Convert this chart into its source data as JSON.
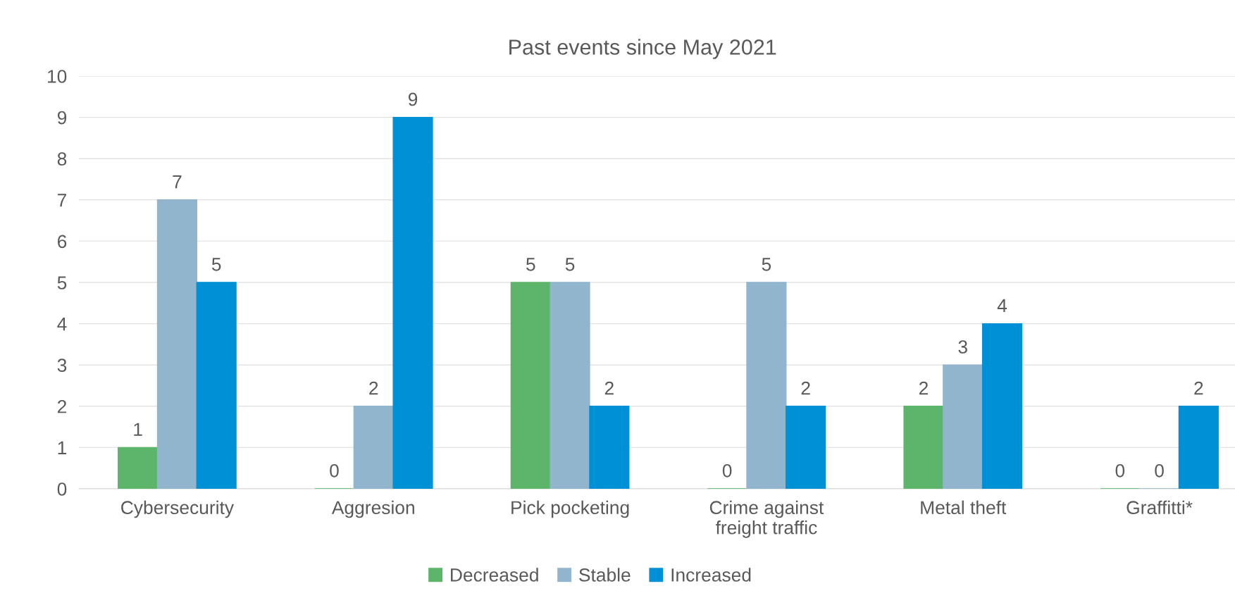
{
  "chart_data": {
    "type": "bar",
    "title": "Past events since May 2021",
    "categories": [
      "Cybersecurity",
      "Aggresion",
      "Pick pocketing",
      "Crime against\nfreight traffic",
      "Metal theft",
      "Graffitti*"
    ],
    "series": [
      {
        "name": "Decreased",
        "color": "#5cb56a",
        "values": [
          1,
          0,
          5,
          0,
          2,
          0
        ]
      },
      {
        "name": "Stable",
        "color": "#91b5cc",
        "values": [
          7,
          2,
          5,
          5,
          3,
          0
        ]
      },
      {
        "name": "Increased",
        "color": "#0090d5",
        "values": [
          5,
          9,
          2,
          2,
          4,
          2
        ]
      }
    ],
    "ylim": [
      0,
      10
    ],
    "yticks": [
      0,
      1,
      2,
      3,
      4,
      5,
      6,
      7,
      8,
      9,
      10
    ],
    "grid": "y",
    "legend": "bottom",
    "data_labels": true
  }
}
